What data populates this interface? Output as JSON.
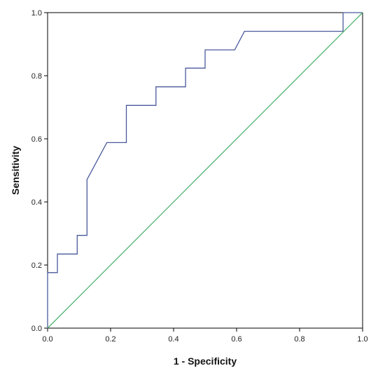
{
  "chart_data": {
    "type": "line",
    "title": "",
    "xlabel": "1 - Specificity",
    "ylabel": "Sensitivity",
    "xlim": [
      0.0,
      1.0
    ],
    "ylim": [
      0.0,
      1.0
    ],
    "x_ticks": [
      "0.0",
      "0.2",
      "0.4",
      "0.6",
      "0.8",
      "1.0"
    ],
    "y_ticks": [
      "0.0",
      "0.2",
      "0.4",
      "0.6",
      "0.8",
      "1.0"
    ],
    "grid": false,
    "legend": "none",
    "series": [
      {
        "color": "#4a5a9c",
        "x": [
          0.0,
          0.0,
          0.031,
          0.031,
          0.094,
          0.094,
          0.125,
          0.125,
          0.188,
          0.25,
          0.25,
          0.344,
          0.344,
          0.438,
          0.438,
          0.5,
          0.5,
          0.594,
          0.625,
          0.938,
          0.938,
          1.0
        ],
        "y": [
          0.0,
          0.176,
          0.176,
          0.235,
          0.235,
          0.294,
          0.294,
          0.471,
          0.588,
          0.588,
          0.706,
          0.706,
          0.765,
          0.765,
          0.824,
          0.824,
          0.882,
          0.882,
          0.941,
          0.941,
          1.0,
          1.0
        ]
      },
      {
        "color": "#4cb26e",
        "x": [
          0.0,
          1.0
        ],
        "y": [
          0.0,
          1.0
        ]
      }
    ]
  }
}
